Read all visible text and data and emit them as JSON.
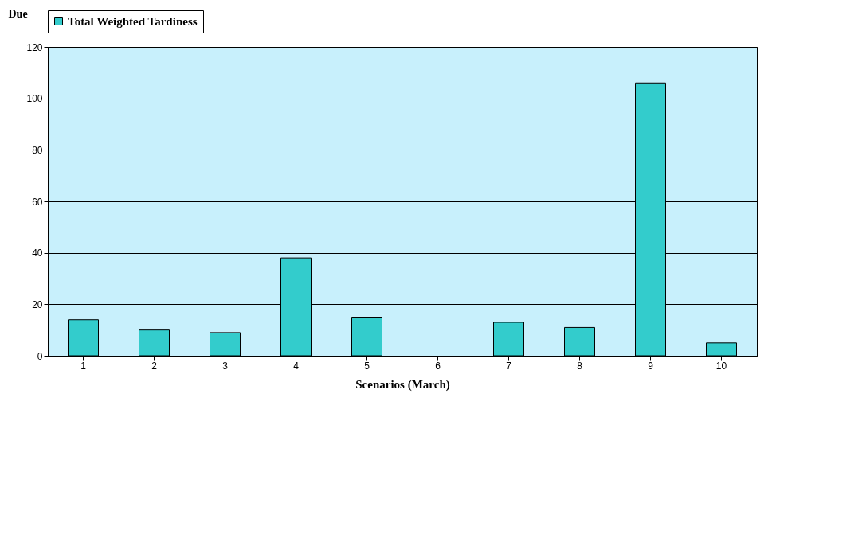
{
  "chart_data": {
    "type": "bar",
    "ylabel": "Due",
    "xlabel": "Scenarios (March)",
    "categories": [
      "1",
      "2",
      "3",
      "4",
      "5",
      "6",
      "7",
      "8",
      "9",
      "10"
    ],
    "series": [
      {
        "name": "Total Weighted Tardiness",
        "color": "#33cccc",
        "values": [
          14,
          10,
          9,
          38,
          15,
          null,
          13,
          11,
          106,
          5
        ]
      }
    ],
    "ylim": [
      0,
      120
    ],
    "yticks": [
      0,
      20,
      40,
      60,
      80,
      100,
      120
    ],
    "grid": "y",
    "legend": "top"
  }
}
